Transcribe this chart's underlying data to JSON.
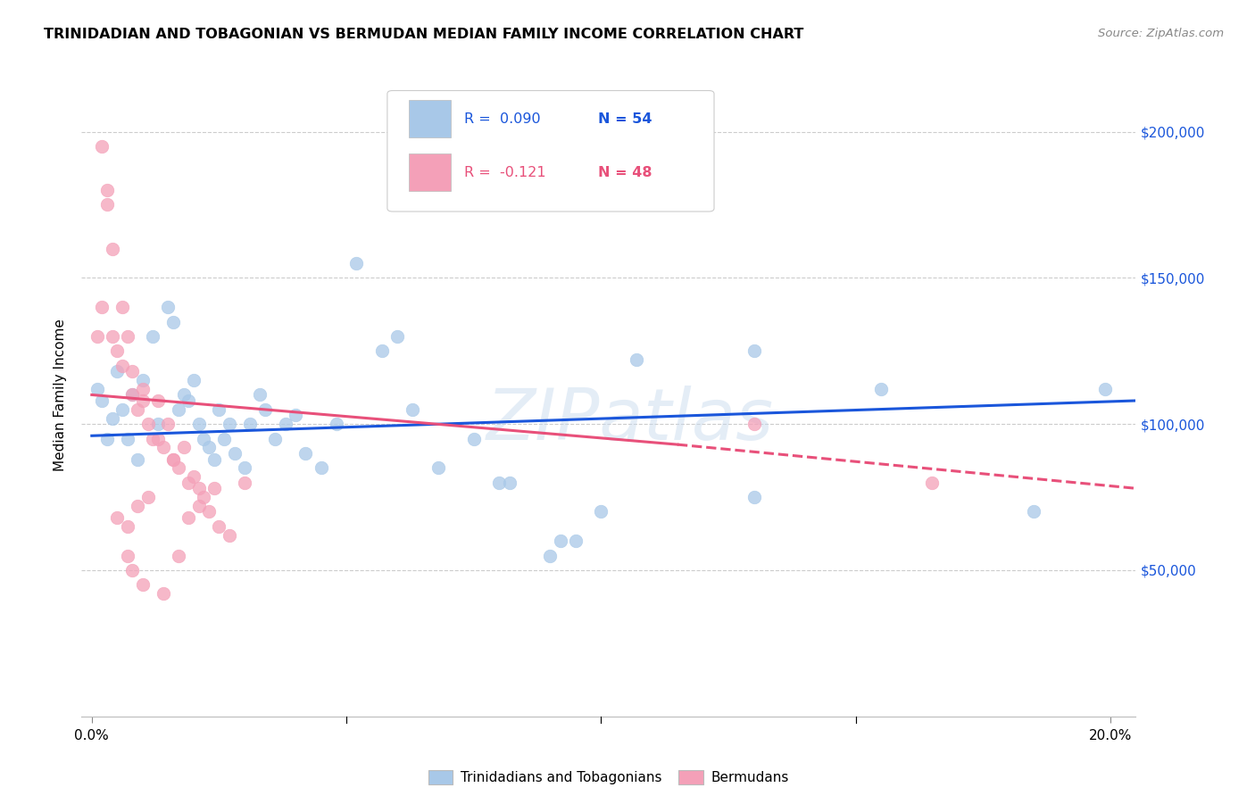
{
  "title": "TRINIDADIAN AND TOBAGONIAN VS BERMUDAN MEDIAN FAMILY INCOME CORRELATION CHART",
  "source": "Source: ZipAtlas.com",
  "ylabel": "Median Family Income",
  "ytick_labels": [
    "$50,000",
    "$100,000",
    "$150,000",
    "$200,000"
  ],
  "ytick_vals": [
    50000,
    100000,
    150000,
    200000
  ],
  "watermark": "ZIPatlas",
  "blue_color": "#a8c8e8",
  "pink_color": "#f4a0b8",
  "blue_line_color": "#1a56db",
  "pink_line_color": "#e8507a",
  "blue_line": {
    "x0": 0.0,
    "x1": 0.205,
    "y0": 96000,
    "y1": 108000
  },
  "pink_line_solid": {
    "x0": 0.0,
    "x1": 0.115,
    "y0": 110000,
    "y1": 93000
  },
  "pink_line_dash": {
    "x0": 0.115,
    "x1": 0.205,
    "y0": 93000,
    "y1": 78000
  },
  "scatter_blue": [
    [
      0.001,
      112000
    ],
    [
      0.002,
      108000
    ],
    [
      0.003,
      95000
    ],
    [
      0.004,
      102000
    ],
    [
      0.005,
      118000
    ],
    [
      0.006,
      105000
    ],
    [
      0.007,
      95000
    ],
    [
      0.008,
      110000
    ],
    [
      0.009,
      88000
    ],
    [
      0.01,
      115000
    ],
    [
      0.012,
      130000
    ],
    [
      0.013,
      100000
    ],
    [
      0.015,
      140000
    ],
    [
      0.016,
      135000
    ],
    [
      0.017,
      105000
    ],
    [
      0.018,
      110000
    ],
    [
      0.019,
      108000
    ],
    [
      0.02,
      115000
    ],
    [
      0.021,
      100000
    ],
    [
      0.022,
      95000
    ],
    [
      0.023,
      92000
    ],
    [
      0.024,
      88000
    ],
    [
      0.025,
      105000
    ],
    [
      0.026,
      95000
    ],
    [
      0.027,
      100000
    ],
    [
      0.028,
      90000
    ],
    [
      0.03,
      85000
    ],
    [
      0.031,
      100000
    ],
    [
      0.033,
      110000
    ],
    [
      0.034,
      105000
    ],
    [
      0.036,
      95000
    ],
    [
      0.038,
      100000
    ],
    [
      0.04,
      103000
    ],
    [
      0.042,
      90000
    ],
    [
      0.045,
      85000
    ],
    [
      0.048,
      100000
    ],
    [
      0.052,
      155000
    ],
    [
      0.057,
      125000
    ],
    [
      0.06,
      130000
    ],
    [
      0.063,
      105000
    ],
    [
      0.068,
      85000
    ],
    [
      0.075,
      95000
    ],
    [
      0.08,
      80000
    ],
    [
      0.082,
      80000
    ],
    [
      0.09,
      55000
    ],
    [
      0.092,
      60000
    ],
    [
      0.095,
      60000
    ],
    [
      0.1,
      70000
    ],
    [
      0.107,
      122000
    ],
    [
      0.13,
      75000
    ],
    [
      0.155,
      112000
    ],
    [
      0.185,
      70000
    ],
    [
      0.199,
      112000
    ],
    [
      0.13,
      125000
    ]
  ],
  "scatter_pink": [
    [
      0.001,
      130000
    ],
    [
      0.002,
      140000
    ],
    [
      0.003,
      175000
    ],
    [
      0.004,
      160000
    ],
    [
      0.004,
      130000
    ],
    [
      0.005,
      125000
    ],
    [
      0.006,
      140000
    ],
    [
      0.006,
      120000
    ],
    [
      0.007,
      130000
    ],
    [
      0.008,
      110000
    ],
    [
      0.008,
      118000
    ],
    [
      0.009,
      105000
    ],
    [
      0.01,
      112000
    ],
    [
      0.01,
      108000
    ],
    [
      0.011,
      100000
    ],
    [
      0.012,
      95000
    ],
    [
      0.013,
      108000
    ],
    [
      0.013,
      95000
    ],
    [
      0.014,
      92000
    ],
    [
      0.015,
      100000
    ],
    [
      0.016,
      88000
    ],
    [
      0.016,
      88000
    ],
    [
      0.017,
      85000
    ],
    [
      0.018,
      92000
    ],
    [
      0.019,
      80000
    ],
    [
      0.02,
      82000
    ],
    [
      0.021,
      78000
    ],
    [
      0.022,
      75000
    ],
    [
      0.023,
      70000
    ],
    [
      0.025,
      65000
    ],
    [
      0.027,
      62000
    ],
    [
      0.03,
      80000
    ],
    [
      0.005,
      68000
    ],
    [
      0.007,
      55000
    ],
    [
      0.008,
      50000
    ],
    [
      0.01,
      45000
    ],
    [
      0.011,
      75000
    ],
    [
      0.014,
      42000
    ],
    [
      0.017,
      55000
    ],
    [
      0.019,
      68000
    ],
    [
      0.021,
      72000
    ],
    [
      0.024,
      78000
    ],
    [
      0.002,
      195000
    ],
    [
      0.003,
      180000
    ],
    [
      0.13,
      100000
    ],
    [
      0.165,
      80000
    ],
    [
      0.009,
      72000
    ],
    [
      0.007,
      65000
    ]
  ],
  "xlim": [
    -0.002,
    0.205
  ],
  "ylim": [
    0,
    220000
  ],
  "figsize": [
    14.06,
    8.92
  ],
  "dpi": 100
}
